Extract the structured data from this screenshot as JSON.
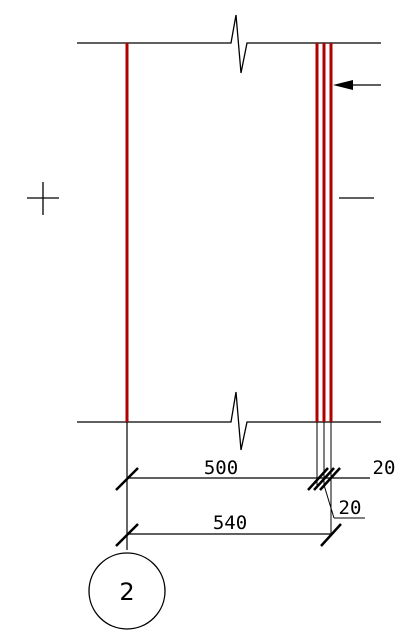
{
  "colors": {
    "line": "#000000",
    "wall": "#b00000"
  },
  "dimensions": {
    "inner_width": "500",
    "outer_width": "540",
    "finish_top": "20",
    "finish_bottom": "20"
  },
  "grid": {
    "axis_label": "2"
  }
}
